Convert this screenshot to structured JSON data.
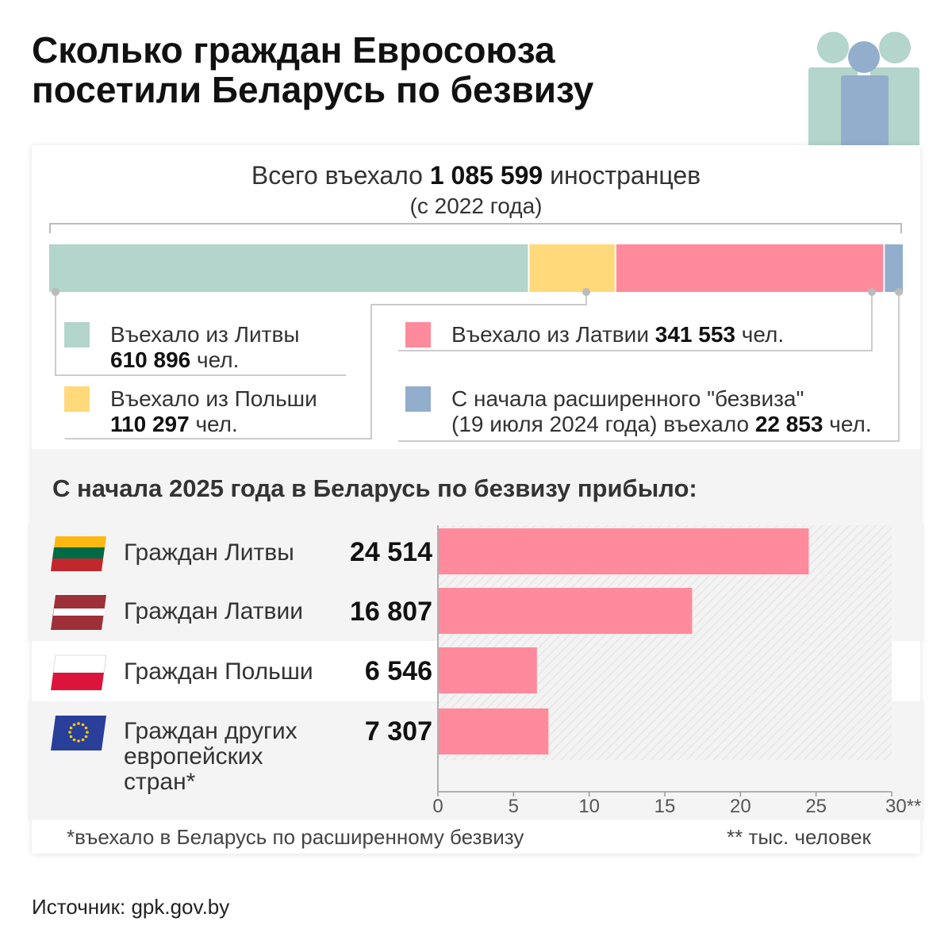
{
  "title": {
    "line1": "Сколько граждан Евросоюза",
    "line2": "посетили Беларусь по безвизу"
  },
  "summary": {
    "total_prefix": "Всего въехало",
    "total_value": "1 085 599",
    "total_suffix": "иностранцев",
    "since": "(с 2022 года)"
  },
  "colors": {
    "lithuania": "#b3d5cb",
    "poland": "#ffd97a",
    "latvia": "#ff8a9c",
    "extended": "#93aecc",
    "bar": "#ff8a9c"
  },
  "legend": {
    "lithuania": {
      "line1": "Въехало из Литвы",
      "value": "610 896",
      "unit": "чел."
    },
    "poland": {
      "line1": "Въехало из Польши",
      "value": "110 297",
      "unit": "чел."
    },
    "latvia": {
      "text": "Въехало из Латвии",
      "value": "341 553",
      "unit": "чел."
    },
    "extended": {
      "line1": "С начала расширенного \"безвиза\"",
      "line2_prefix": "(19 июля 2024 года) въехало",
      "value": "22 853",
      "unit": "чел."
    }
  },
  "section2_title": "С начала 2025 года в Беларусь по безвизу прибыло:",
  "rows": [
    {
      "label": "Граждан Литвы",
      "value": "24 514"
    },
    {
      "label": "Граждан Латвии",
      "value": "16 807"
    },
    {
      "label": "Граждан Польши",
      "value": "6 546"
    },
    {
      "label_line1": "Граждан других",
      "label_line2": "европейских",
      "label_line3": "стран*",
      "value": "7 307"
    }
  ],
  "chart_data": [
    {
      "type": "bar",
      "orientation": "horizontal-stacked",
      "title": "Всего въехало 1 085 599 иностранцев (с 2022 года)",
      "categories": [
        "Литва",
        "Польша",
        "Латвия",
        "Расширенный безвиз"
      ],
      "values": [
        610896,
        110297,
        341553,
        22853
      ],
      "unit": "чел."
    },
    {
      "type": "bar",
      "orientation": "horizontal",
      "title": "С начала 2025 года в Беларусь по безвизу прибыло:",
      "categories": [
        "Граждан Литвы",
        "Граждан Латвии",
        "Граждан Польши",
        "Граждан других европейских стран*"
      ],
      "values": [
        24.514,
        16.807,
        6.546,
        7.307
      ],
      "xlim": [
        0,
        30
      ],
      "xticks": [
        "0",
        "5",
        "10",
        "15",
        "20",
        "25",
        "30**"
      ],
      "xunit": "тыс. человек"
    }
  ],
  "footnotes": {
    "left": "*въехало в Беларусь по расширенному безвизу",
    "right": "** тыс. человек"
  },
  "source": "Источник: gpk.gov.by"
}
